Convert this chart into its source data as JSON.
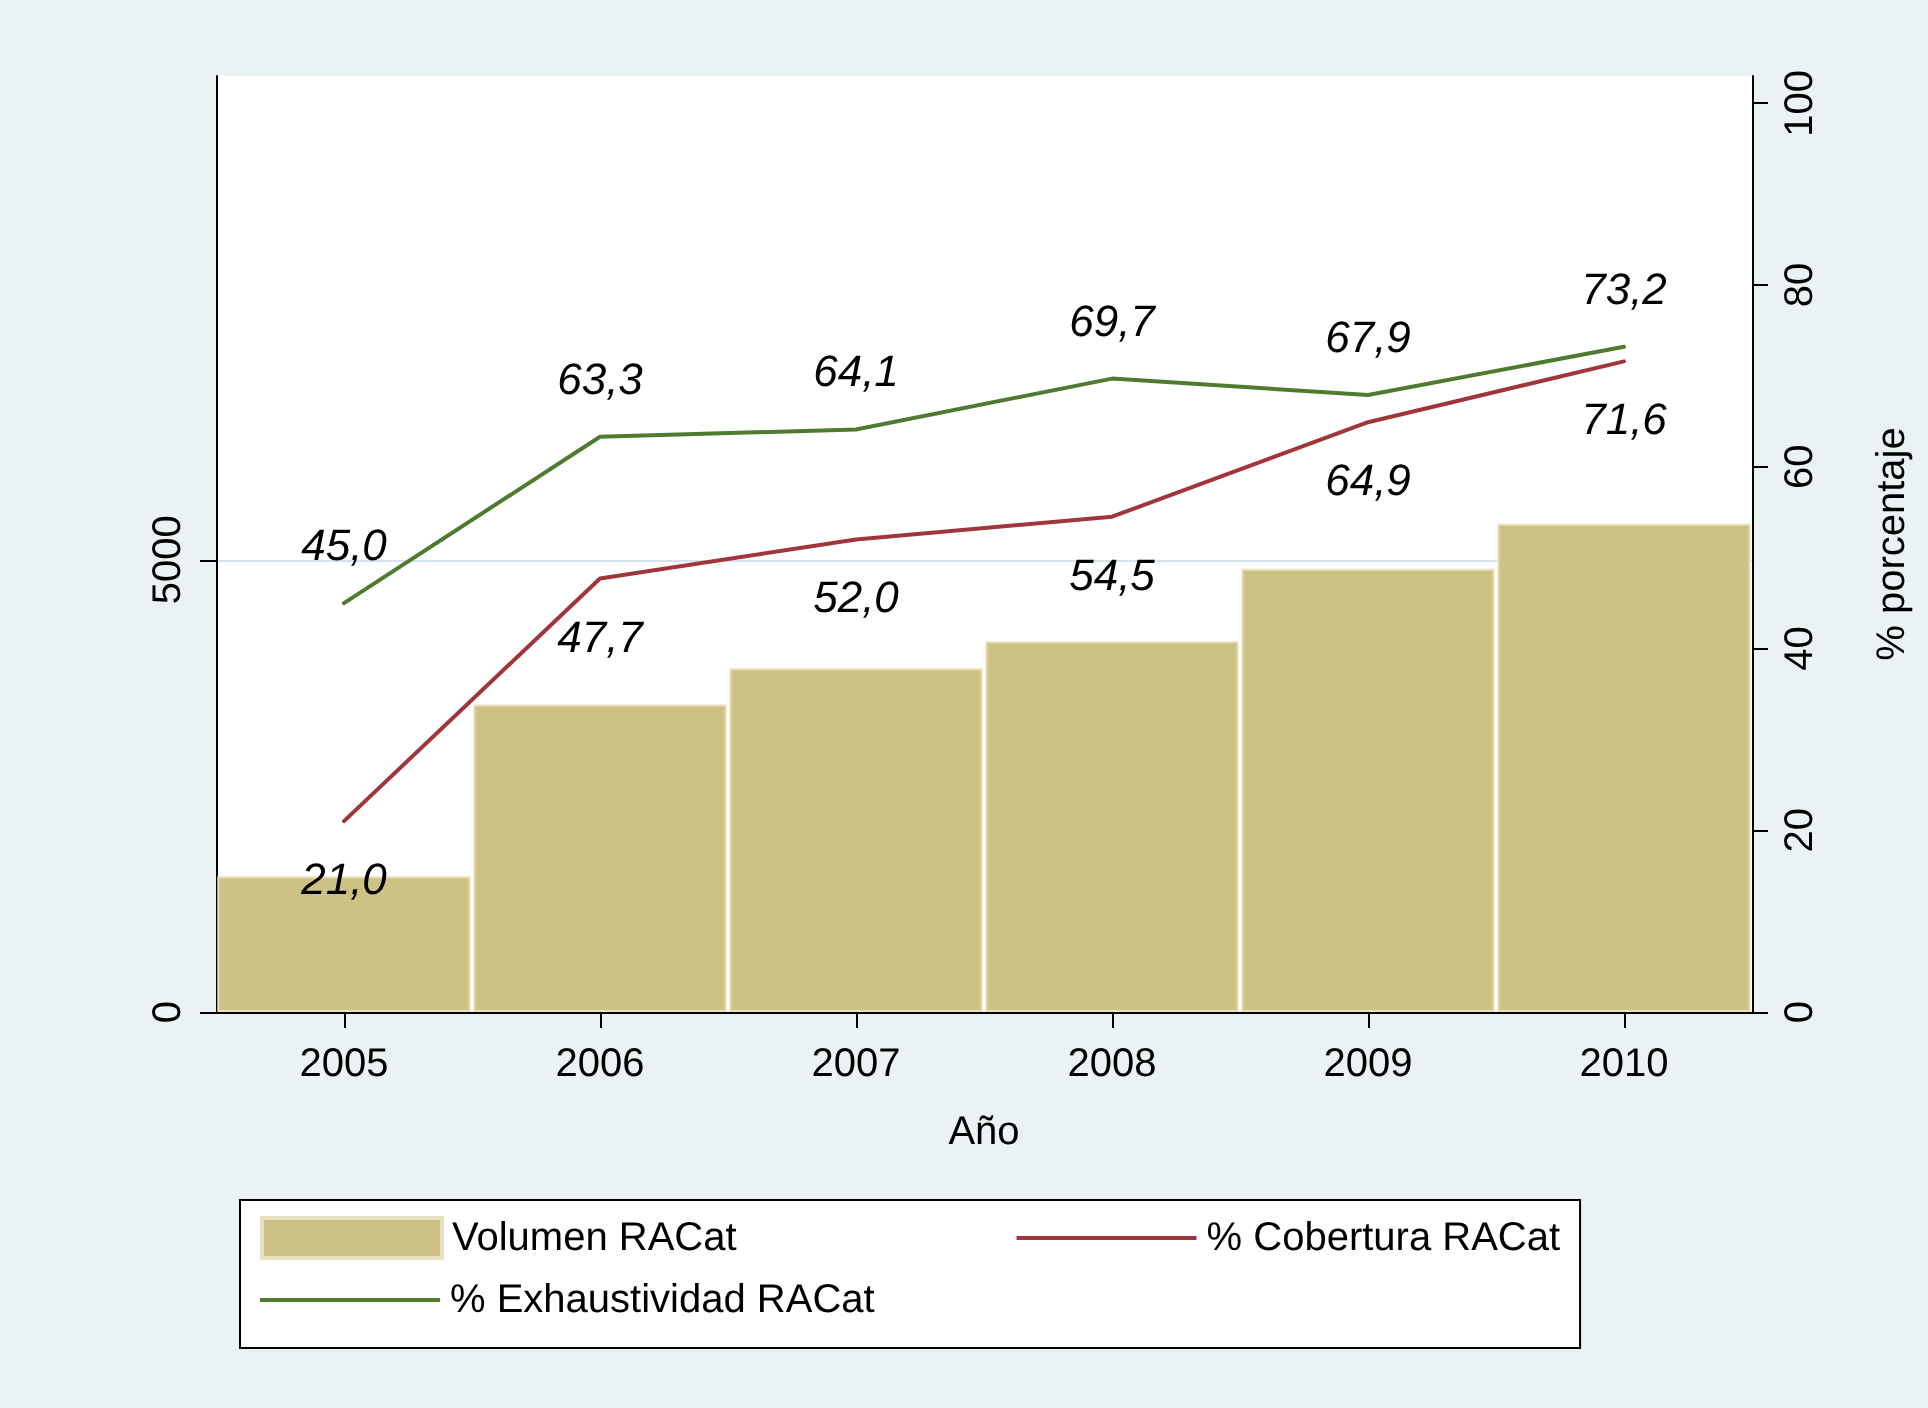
{
  "chart_data": {
    "type": "bar",
    "xlabel": "Año",
    "y2label": "% porcentaje",
    "categories": [
      "2005",
      "2006",
      "2007",
      "2008",
      "2009",
      "2010"
    ],
    "series": [
      {
        "name": "Volumen RACat",
        "color": "#cdc183",
        "values": [
          1500,
          3400,
          3800,
          4100,
          4900,
          5400
        ]
      },
      {
        "name": "% Cobertura RACat",
        "type": "line",
        "axis": "y2",
        "color": "#a0363b",
        "values": [
          21.0,
          47.7,
          52.0,
          54.5,
          64.9,
          71.6
        ],
        "value_labels": [
          "21,0",
          "47,7",
          "52,0",
          "54,5",
          "64,9",
          "71,6"
        ]
      },
      {
        "name": "% Exhaustividad RACat",
        "type": "line",
        "axis": "y2",
        "color": "#4e7b2f",
        "values": [
          45.0,
          63.3,
          64.1,
          69.7,
          67.9,
          73.2
        ],
        "value_labels": [
          "45,0",
          "63,3",
          "64,1",
          "69,7",
          "67,9",
          "73,2"
        ]
      }
    ],
    "ylim": [
      0,
      10350
    ],
    "yticks": [
      0,
      5000
    ],
    "y2lim": [
      0,
      103
    ],
    "y2ticks": [
      0,
      20,
      40,
      60,
      80,
      100
    ],
    "grid": "y",
    "legend": "bottom"
  }
}
